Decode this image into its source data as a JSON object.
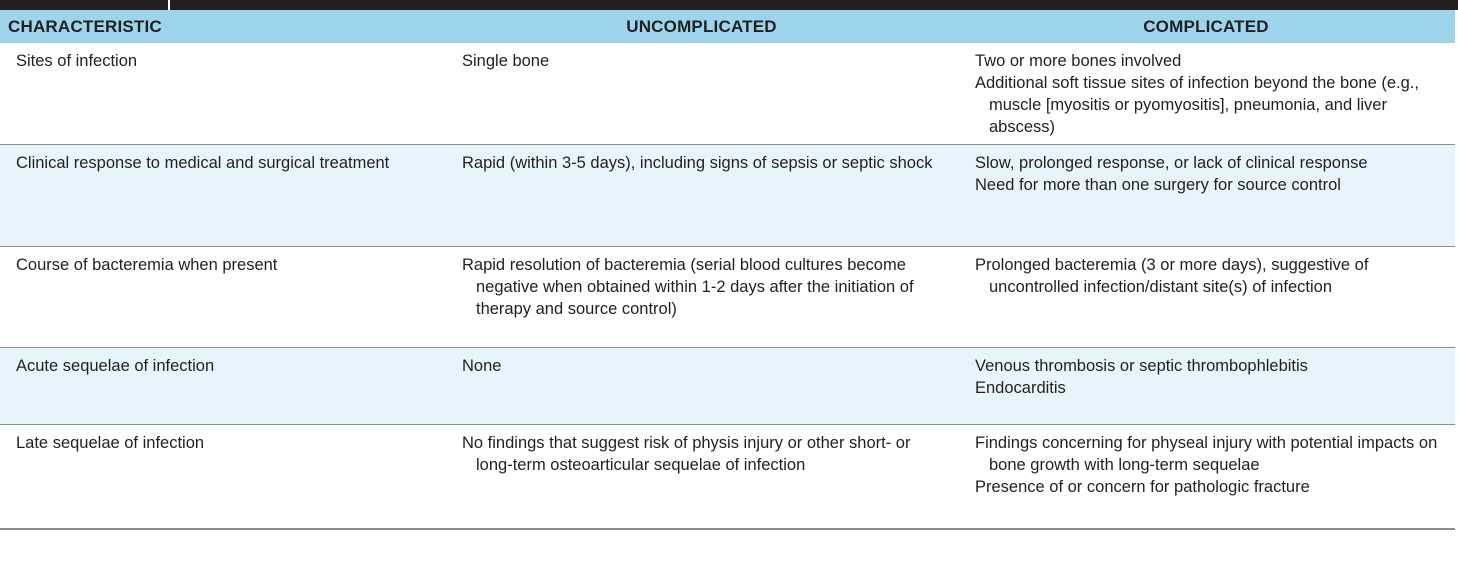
{
  "table": {
    "headers": [
      "CHARACTERISTIC",
      "UNCOMPLICATED",
      "COMPLICATED"
    ],
    "rows": [
      {
        "characteristic": "Sites of infection",
        "uncomplicated": [
          "Single bone"
        ],
        "complicated": [
          "Two or more bones involved",
          "Additional soft tissue sites of infection beyond the bone (e.g., muscle [myositis or pyomyositis], pneumonia, and liver abscess)"
        ]
      },
      {
        "characteristic": "Clinical response to medical and surgical treatment",
        "uncomplicated": [
          "Rapid (within 3-5 days), including signs of sepsis or septic shock"
        ],
        "complicated": [
          "Slow, prolonged response, or lack of clinical response",
          "Need for more than one surgery for source control"
        ]
      },
      {
        "characteristic": "Course of bacteremia when present",
        "uncomplicated": [
          "Rapid resolution of bacteremia (serial blood cultures become negative when obtained within 1-2 days after the initiation of therapy and source control)"
        ],
        "complicated": [
          "Prolonged bacteremia (3 or more days), suggestive of uncontrolled infection/distant site(s) of infection"
        ]
      },
      {
        "characteristic": "Acute sequelae of infection",
        "uncomplicated": [
          "None"
        ],
        "complicated": [
          "Venous thrombosis or septic thrombophlebitis",
          "Endocarditis"
        ]
      },
      {
        "characteristic": "Late sequelae of infection",
        "uncomplicated": [
          "No findings that suggest risk of physis injury or other short- or long-term osteoarticular sequelae of infection"
        ],
        "complicated": [
          "Findings concerning for physeal injury with potential impacts on bone growth with long-term sequelae",
          "Presence of or concern for pathologic fracture"
        ]
      }
    ]
  },
  "colors": {
    "header_bg": "#9dd4ec",
    "row_alt_bg": "#e8f4fb",
    "top_bar": "#231f20",
    "rule": "#8a8c8e"
  }
}
